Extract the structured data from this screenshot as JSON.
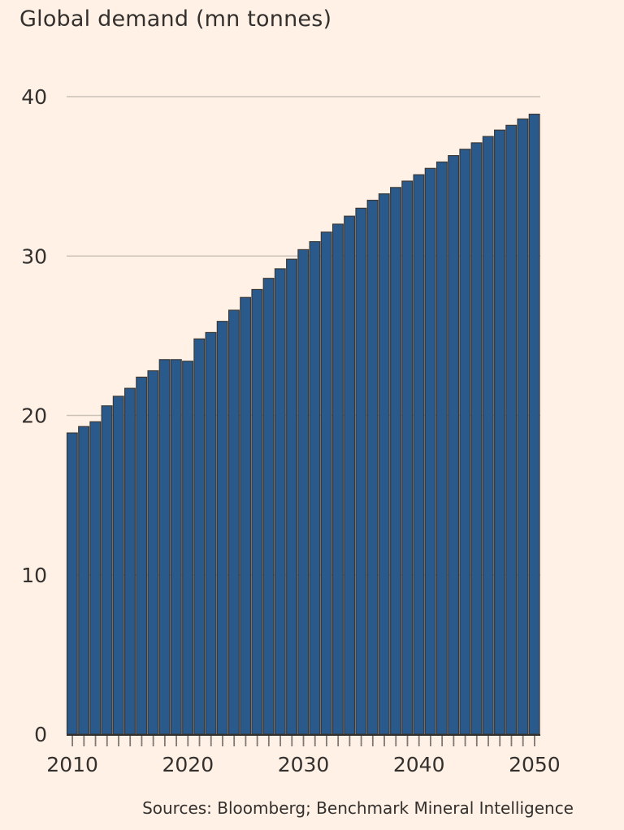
{
  "chart_data": {
    "type": "bar",
    "title": "Global demand (mn tonnes)",
    "xlabel": "",
    "ylabel": "",
    "ylim": [
      0,
      40
    ],
    "yticks": [
      0,
      10,
      20,
      30,
      40
    ],
    "xtick_labels": [
      "2010",
      "2020",
      "2030",
      "2040",
      "2050"
    ],
    "categories": [
      2010,
      2011,
      2012,
      2013,
      2014,
      2015,
      2016,
      2017,
      2018,
      2019,
      2020,
      2021,
      2022,
      2023,
      2024,
      2025,
      2026,
      2027,
      2028,
      2029,
      2030,
      2031,
      2032,
      2033,
      2034,
      2035,
      2036,
      2037,
      2038,
      2039,
      2040,
      2041,
      2042,
      2043,
      2044,
      2045,
      2046,
      2047,
      2048,
      2049,
      2050
    ],
    "values": [
      18.9,
      19.3,
      19.6,
      20.6,
      21.2,
      21.7,
      22.4,
      22.8,
      23.5,
      23.5,
      23.4,
      24.8,
      25.2,
      25.9,
      26.6,
      27.4,
      27.9,
      28.6,
      29.2,
      29.8,
      30.4,
      30.9,
      31.5,
      32.0,
      32.5,
      33.0,
      33.5,
      33.9,
      34.3,
      34.7,
      35.1,
      35.5,
      35.9,
      36.3,
      36.7,
      37.1,
      37.5,
      37.9,
      38.2,
      38.6,
      38.9
    ],
    "grid": true,
    "bar_color": "#2a5a8c",
    "source": "Sources: Bloomberg; Benchmark Mineral Intelligence"
  }
}
